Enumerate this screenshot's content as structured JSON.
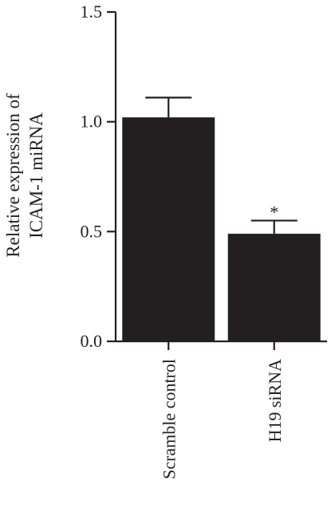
{
  "chart_data": {
    "type": "bar",
    "categories": [
      "Scramble control",
      "H19 siRNA"
    ],
    "values": [
      1.02,
      0.49
    ],
    "errors": [
      0.09,
      0.06
    ],
    "annotations": [
      "",
      "*"
    ],
    "ylabel_lines": [
      "Relative expression of",
      "ICAM-1 miRNA"
    ],
    "ylim": [
      0,
      1.5
    ],
    "yticks": [
      0.0,
      0.5,
      1.0,
      1.5
    ],
    "ytick_labels": [
      "0.0",
      "0.5",
      "1.0",
      "1.5"
    ],
    "bar_color": "#231f20",
    "grid": false,
    "legend": "none"
  }
}
